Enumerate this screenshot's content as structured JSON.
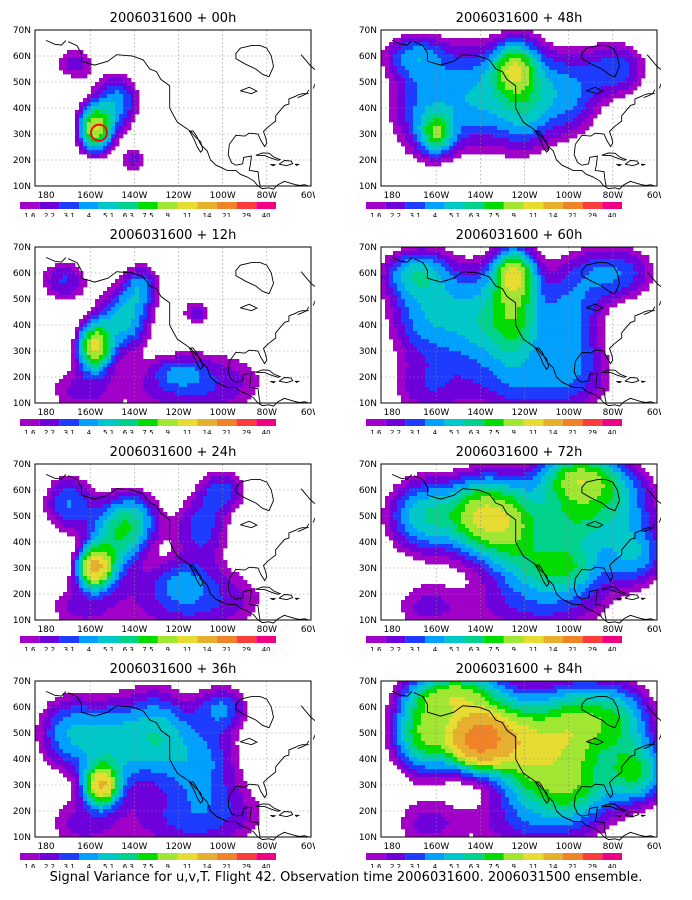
{
  "panels": [
    {
      "title": "2006031600 + 00h"
    },
    {
      "title": "2006031600 + 48h"
    },
    {
      "title": "2006031600 + 12h"
    },
    {
      "title": "2006031600 + 60h"
    },
    {
      "title": "2006031600 + 24h"
    },
    {
      "title": "2006031600 + 72h"
    },
    {
      "title": "2006031600 + 36h"
    },
    {
      "title": "2006031600 + 84h"
    }
  ],
  "lat_labels": [
    "70N",
    "60N",
    "50N",
    "40N",
    "30N",
    "20N",
    "10N"
  ],
  "lon_labels": [
    "180",
    "160W",
    "140W",
    "120W",
    "100W",
    "80W",
    "60W"
  ],
  "colorbar": {
    "labels": [
      "1.6",
      "2.2",
      "3.1",
      "4",
      "5.1",
      "6.3",
      "7.5",
      "9",
      "11",
      "14",
      "21",
      "29",
      "40"
    ],
    "colors": [
      "#a000c8",
      "#6e00dc",
      "#1e3cff",
      "#00a0ff",
      "#00c8c8",
      "#00d28c",
      "#00dc00",
      "#a0e632",
      "#e6dc32",
      "#e6af2d",
      "#f08228",
      "#fa3c3c",
      "#f00082"
    ]
  },
  "caption": "Signal Variance for u,v,T. Flight 42. Observation time 2006031600. 2006031500 ensemble."
}
